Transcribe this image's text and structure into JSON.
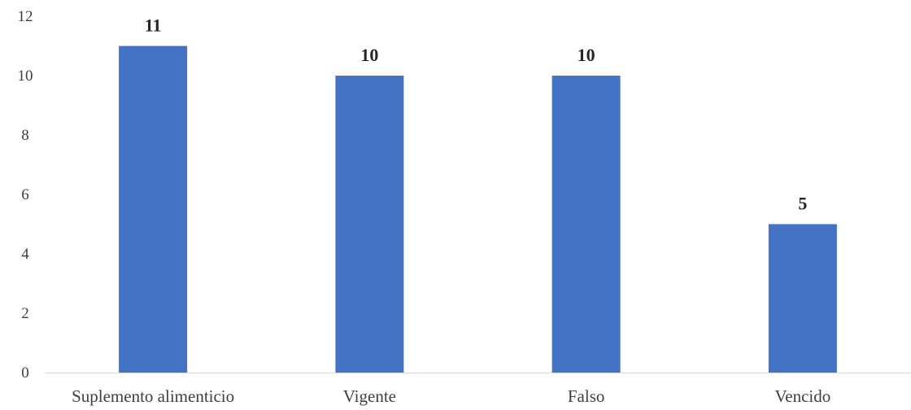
{
  "chart_data": {
    "type": "bar",
    "categories": [
      "Suplemento alimenticio",
      "Vigente",
      "Falso",
      "Vencido"
    ],
    "series": [
      {
        "values": [
          11,
          10,
          10,
          5
        ]
      }
    ],
    "data_labels": [
      "11",
      "10",
      "10",
      "5"
    ],
    "title": "",
    "xlabel": "",
    "ylabel": "",
    "ylim": [
      0,
      12
    ],
    "yticks": [
      "0",
      "2",
      "4",
      "6",
      "8",
      "10",
      "12"
    ],
    "grid": false,
    "legend": "none",
    "colors": {
      "bar": "#4472C4",
      "axis": "#D9D9D9",
      "tick_text": "#404040",
      "data_label_text": "#262626"
    }
  }
}
